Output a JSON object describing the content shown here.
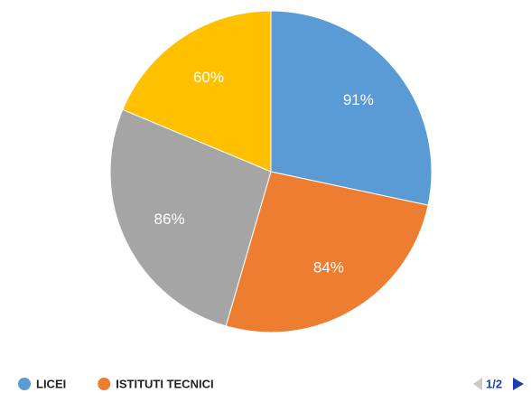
{
  "chart_data": {
    "type": "pie",
    "categories": [
      "LICEI",
      "ISTITUTI TECNICI",
      null,
      null
    ],
    "values": [
      91,
      84,
      86,
      60
    ],
    "value_labels": [
      "91%",
      "84%",
      "86%",
      "60%"
    ],
    "colors": [
      "#5b9bd5",
      "#ed7d31",
      "#a5a5a5",
      "#ffc000"
    ],
    "legend": "bottom",
    "legend_page": "1/2"
  }
}
